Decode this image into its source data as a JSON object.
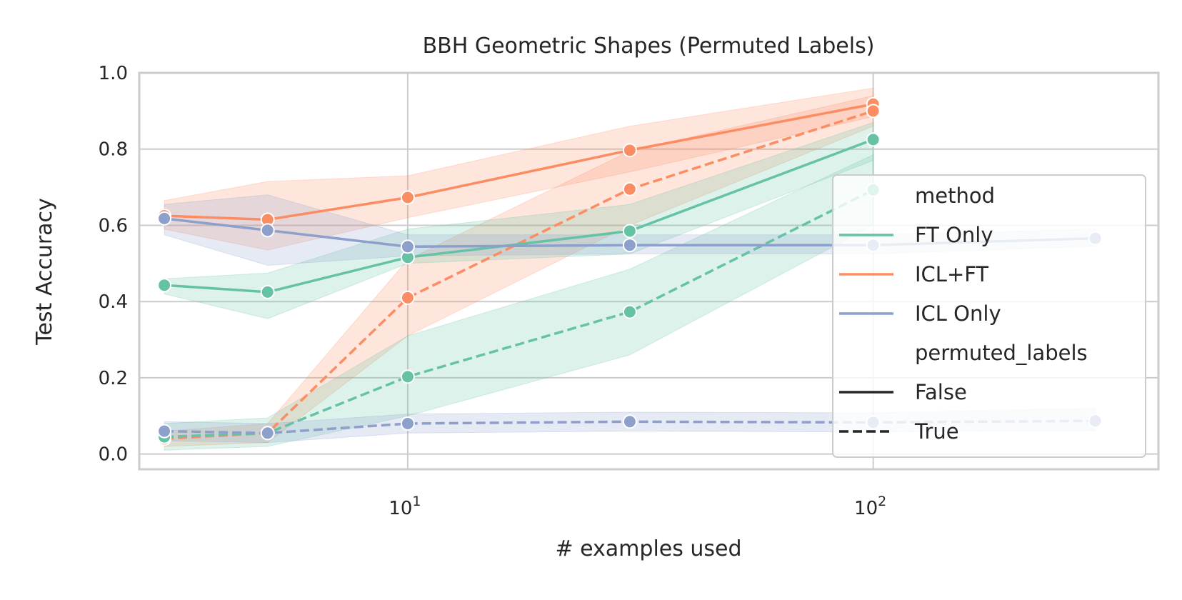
{
  "chart_data": {
    "type": "line",
    "title": "BBH Geometric Shapes (Permuted Labels)",
    "xlabel": "# examples used",
    "ylabel": "Test Accuracy",
    "xscale": "log",
    "xlim": [
      2.65,
      410
    ],
    "ylim": [
      -0.04,
      1.0
    ],
    "x_ticks": [
      {
        "value": 10,
        "base": "10",
        "exp": "1"
      },
      {
        "value": 100,
        "base": "10",
        "exp": "2"
      }
    ],
    "y_ticks": [
      0.0,
      0.2,
      0.4,
      0.6,
      0.8,
      1.0
    ],
    "y_tick_labels": [
      "0.0",
      "0.2",
      "0.4",
      "0.6",
      "0.8",
      "1.0"
    ],
    "grid": true,
    "legend_position": "right",
    "legend": {
      "hue_title": "method",
      "style_title": "permuted_labels",
      "methods": [
        {
          "name": "FT Only",
          "color": "#66c2a5"
        },
        {
          "name": "ICL+FT",
          "color": "#fc8d62"
        },
        {
          "name": "ICL Only",
          "color": "#8da0cb"
        }
      ],
      "styles": [
        {
          "name": "False",
          "dash": "solid"
        },
        {
          "name": "True",
          "dash": "dashed"
        }
      ]
    },
    "series": [
      {
        "method": "ICL+FT",
        "permuted_labels": "False",
        "color": "#fc8d62",
        "dash": "solid",
        "x": [
          3,
          5,
          10,
          30,
          100
        ],
        "y": [
          0.625,
          0.615,
          0.673,
          0.797,
          0.918
        ],
        "lo": [
          0.59,
          0.535,
          0.62,
          0.74,
          0.885
        ],
        "hi": [
          0.665,
          0.715,
          0.73,
          0.86,
          0.96
        ]
      },
      {
        "method": "ICL+FT",
        "permuted_labels": "True",
        "color": "#fc8d62",
        "dash": "dashed",
        "x": [
          3,
          5,
          10,
          30,
          100
        ],
        "y": [
          0.04,
          0.055,
          0.41,
          0.695,
          0.9
        ],
        "lo": [
          0.02,
          0.03,
          0.31,
          0.6,
          0.86
        ],
        "hi": [
          0.06,
          0.08,
          0.51,
          0.795,
          0.94
        ]
      },
      {
        "method": "FT Only",
        "permuted_labels": "False",
        "color": "#66c2a5",
        "dash": "solid",
        "x": [
          3,
          5,
          10,
          30,
          100
        ],
        "y": [
          0.443,
          0.425,
          0.516,
          0.585,
          0.825
        ],
        "lo": [
          0.42,
          0.355,
          0.5,
          0.525,
          0.77
        ],
        "hi": [
          0.46,
          0.475,
          0.59,
          0.655,
          0.87
        ]
      },
      {
        "method": "FT Only",
        "permuted_labels": "True",
        "color": "#66c2a5",
        "dash": "dashed",
        "x": [
          3,
          5,
          10,
          30,
          100
        ],
        "y": [
          0.045,
          0.055,
          0.203,
          0.373,
          0.693
        ],
        "lo": [
          0.01,
          0.02,
          0.1,
          0.26,
          0.6
        ],
        "hi": [
          0.08,
          0.095,
          0.31,
          0.485,
          0.785
        ]
      },
      {
        "method": "ICL Only",
        "permuted_labels": "False",
        "color": "#8da0cb",
        "dash": "solid",
        "x": [
          3,
          5,
          10,
          30,
          100,
          300
        ],
        "y": [
          0.618,
          0.587,
          0.544,
          0.548,
          0.548,
          0.566
        ],
        "lo": [
          0.575,
          0.495,
          0.52,
          0.525,
          0.525,
          0.545
        ],
        "hi": [
          0.655,
          0.68,
          0.575,
          0.575,
          0.575,
          0.59
        ]
      },
      {
        "method": "ICL Only",
        "permuted_labels": "True",
        "color": "#8da0cb",
        "dash": "dashed",
        "x": [
          3,
          5,
          10,
          30,
          100,
          300
        ],
        "y": [
          0.06,
          0.055,
          0.08,
          0.085,
          0.083,
          0.087
        ],
        "lo": [
          0.035,
          0.03,
          0.055,
          0.06,
          0.058,
          0.062
        ],
        "hi": [
          0.085,
          0.08,
          0.105,
          0.11,
          0.108,
          0.12
        ]
      }
    ]
  }
}
